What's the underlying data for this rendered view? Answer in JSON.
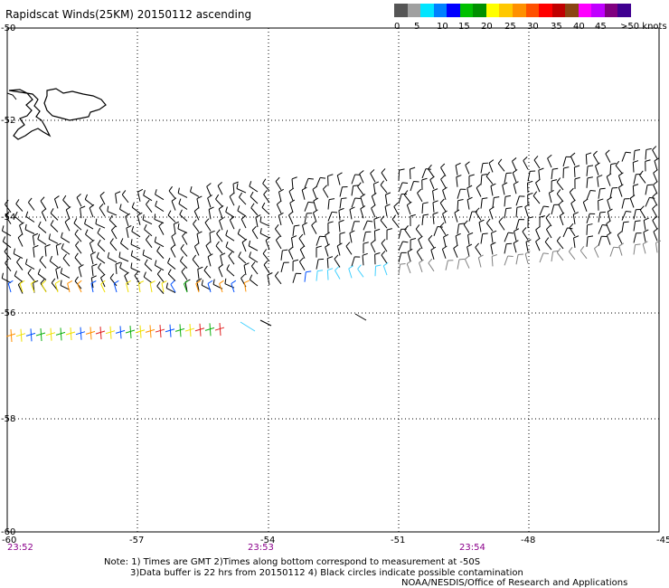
{
  "header": {
    "title": "Rapidscat Winds(25KM) 20150112 ascending"
  },
  "color_scale": {
    "colors": [
      "#555555",
      "#a0a0a0",
      "#00e5ff",
      "#0080ff",
      "#0000ff",
      "#00c000",
      "#009000",
      "#ffff00",
      "#ffc800",
      "#ff9000",
      "#ff5000",
      "#ff0000",
      "#c00000",
      "#8b4513",
      "#ff00ff",
      "#c000ff",
      "#800080",
      "#400090"
    ],
    "labels": [
      "0",
      "5",
      "10",
      "15",
      "20",
      "25",
      "30",
      "35",
      "40",
      "45",
      ">50 knots"
    ]
  },
  "map": {
    "lat_labels": [
      "-50",
      "-52",
      "-54",
      "-56",
      "-58",
      "-60"
    ],
    "lon_labels": [
      "-60",
      "-57",
      "-54",
      "-51",
      "-48",
      "-45"
    ],
    "lat_range": [
      -60,
      -50
    ],
    "lon_range": [
      -60,
      -45
    ],
    "times": [
      "23:52",
      "23:53",
      "23:54"
    ],
    "grid": true,
    "coastline": "Falkland Islands"
  },
  "notes": {
    "line1": "Note: 1) Times are GMT 2)Times along bottom correspond to measurement at -50S",
    "line2": "3)Data buffer is 22 hrs from 20150112 4) Black circles indicate possible contamination",
    "line3": "NOAA/NESDIS/Office of Research and Applications"
  }
}
